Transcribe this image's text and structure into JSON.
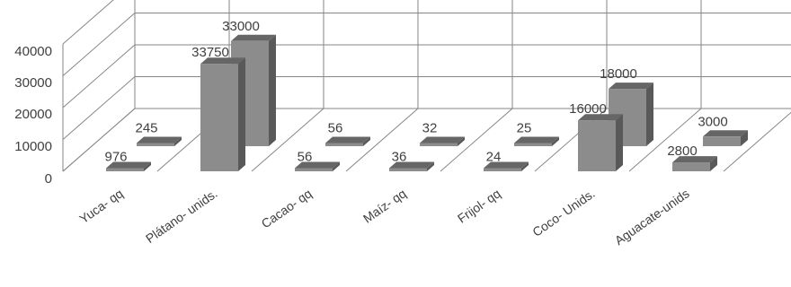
{
  "chart_data": {
    "type": "bar",
    "style": "3d-clustered-depth",
    "categories": [
      "Yuca- qq",
      "Plátano- unids.",
      "Cacao- qq",
      "Maíz- qq",
      "Frijol- qq",
      "Coco- Unids.",
      "Aguacate-unids"
    ],
    "series": [
      {
        "values": [
          976,
          33750,
          56,
          36,
          24,
          16000,
          2800
        ],
        "labels": [
          "976",
          "33750",
          "56",
          "36",
          "24",
          "16000",
          "2800"
        ]
      },
      {
        "values": [
          245,
          33000,
          56,
          32,
          25,
          18000,
          3000
        ],
        "labels": [
          "245",
          "33000",
          "56",
          "32",
          "25",
          "18000",
          "3000"
        ]
      }
    ],
    "ylim": [
      0,
      40000
    ],
    "yticks": [
      "0",
      "10000",
      "20000",
      "30000",
      "40000"
    ],
    "grid": true,
    "legend": "none",
    "colors": {
      "front_face": "#8c8c8c",
      "side_face": "#595959",
      "top_face": "#666666",
      "grid": "#868686",
      "text": "#404040"
    }
  }
}
